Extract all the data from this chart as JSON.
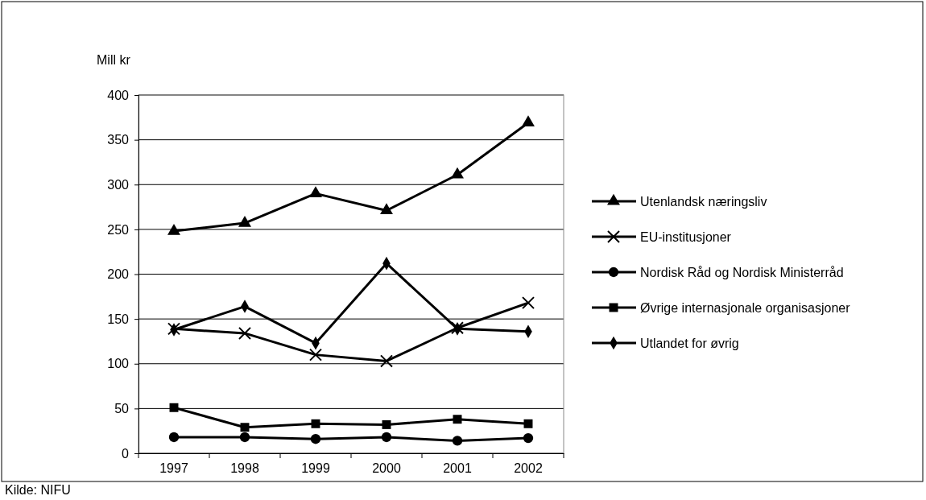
{
  "chart_data": {
    "type": "line",
    "ylabel": "Mill kr",
    "categories": [
      "1997",
      "1998",
      "1999",
      "2000",
      "2001",
      "2002"
    ],
    "series": [
      {
        "name": "Utenlandsk næringsliv",
        "color": "#000000",
        "marker": "triangle",
        "values": [
          248,
          257,
          290,
          271,
          311,
          369
        ]
      },
      {
        "name": "EU-institusjoner",
        "color": "#000000",
        "marker": "cross",
        "values": [
          139,
          134,
          110,
          103,
          140,
          168
        ]
      },
      {
        "name": "Nordisk Råd og Nordisk Ministerråd",
        "color": "#000000",
        "marker": "circle",
        "values": [
          18,
          18,
          16,
          18,
          14,
          17
        ]
      },
      {
        "name": "Øvrige internasjonale organisasjoner",
        "color": "#000000",
        "marker": "square",
        "values": [
          51,
          29,
          33,
          32,
          38,
          33
        ]
      },
      {
        "name": "Utlandet for øvrig",
        "color": "#000000",
        "marker": "diamond",
        "values": [
          138,
          164,
          123,
          212,
          139,
          136
        ]
      }
    ],
    "ylim": [
      0,
      400
    ],
    "yticks": [
      0,
      50,
      100,
      150,
      200,
      250,
      300,
      350,
      400
    ],
    "grid": "y",
    "legend": "right",
    "line_style": "solid",
    "annotations": [
      "Kilde: NIFU"
    ]
  }
}
